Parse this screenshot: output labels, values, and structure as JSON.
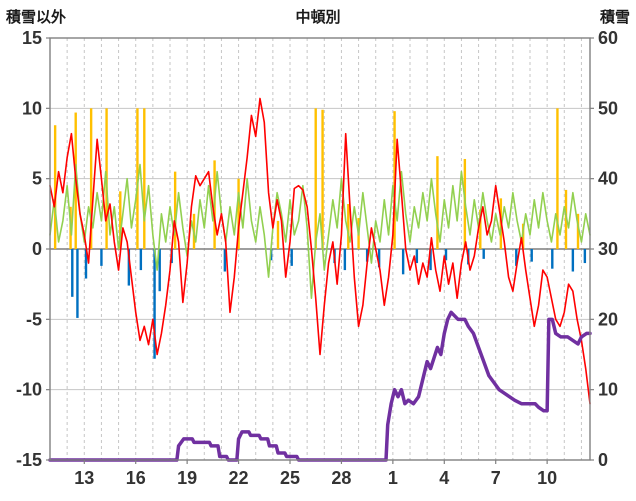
{
  "header": {
    "left_title": "積雪以外",
    "center_title": "中頓別",
    "right_title": "積雪"
  },
  "chart_data": {
    "type": "line",
    "title": "中頓別",
    "left_axis_title": "積雪以外",
    "right_axis_title": "積雪",
    "x_domain": [
      11,
      42.5
    ],
    "x_tick_pos": [
      13,
      16,
      19,
      22,
      25,
      28,
      31,
      34,
      37,
      40
    ],
    "x_tick_labels": [
      "13",
      "16",
      "19",
      "22",
      "25",
      "28",
      "1",
      "4",
      "7",
      "10"
    ],
    "left_ylim": [
      -15,
      15
    ],
    "left_tick_pos": [
      15,
      10,
      5,
      0,
      -5,
      -10,
      -15
    ],
    "left_tick_labels": [
      "15",
      "10",
      "5",
      "0",
      "-5",
      "-10",
      "-15"
    ],
    "right_ylim": [
      0,
      60
    ],
    "right_tick_pos": [
      60,
      50,
      40,
      30,
      20,
      10,
      0
    ],
    "right_tick_labels": [
      "60",
      "50",
      "40",
      "30",
      "20",
      "10",
      "0"
    ],
    "grid": true,
    "legend": "none",
    "colors": {
      "frame": "#808080",
      "gridline": "#c6c6c6",
      "zero_line": "#7f7f7f",
      "tick_text": "#333333",
      "red_line": "#ff0000",
      "green_line": "#92d050",
      "orange_bars": "#ffc000",
      "blue_bars": "#0070c0",
      "purple_line": "#7030a0"
    },
    "series": [
      {
        "name": "orange-bars",
        "kind": "bar",
        "axis": "left",
        "color": "#ffc000",
        "points": [
          [
            11.3,
            8.8
          ],
          [
            12.2,
            3.0
          ],
          [
            12.5,
            9.7
          ],
          [
            13.4,
            10
          ],
          [
            14.3,
            10
          ],
          [
            15.1,
            4.1
          ],
          [
            16.1,
            10
          ],
          [
            16.5,
            10
          ],
          [
            18.3,
            5.5
          ],
          [
            19.4,
            2.5
          ],
          [
            20.6,
            6.3
          ],
          [
            22.0,
            5.0
          ],
          [
            24.3,
            2.0
          ],
          [
            26.5,
            10
          ],
          [
            26.9,
            9.9
          ],
          [
            28.4,
            3.2
          ],
          [
            29.0,
            2.2
          ],
          [
            31.1,
            9.8
          ],
          [
            33.6,
            6.6
          ],
          [
            35.2,
            6.4
          ],
          [
            36.1,
            2.8
          ],
          [
            37.3,
            3.6
          ],
          [
            38.6,
            1.8
          ],
          [
            40.6,
            10
          ],
          [
            41.1,
            4.2
          ],
          [
            41.8,
            2.5
          ]
        ]
      },
      {
        "name": "blue-bars",
        "kind": "bar",
        "axis": "left",
        "color": "#0070c0",
        "points": [
          [
            12.3,
            -3.4
          ],
          [
            12.6,
            -4.9
          ],
          [
            13.1,
            -2.1
          ],
          [
            14.0,
            -1.2
          ],
          [
            15.6,
            -2.6
          ],
          [
            16.3,
            -1.5
          ],
          [
            17.1,
            -7.8
          ],
          [
            17.4,
            -3.0
          ],
          [
            18.1,
            -1.0
          ],
          [
            21.2,
            -1.6
          ],
          [
            23.9,
            -0.8
          ],
          [
            25.1,
            -1.2
          ],
          [
            27.6,
            -1.0
          ],
          [
            28.2,
            -1.5
          ],
          [
            29.5,
            -0.9
          ],
          [
            30.2,
            -1.3
          ],
          [
            31.6,
            -1.8
          ],
          [
            32.4,
            -1.0
          ],
          [
            33.2,
            -1.5
          ],
          [
            34.1,
            -0.8
          ],
          [
            35.4,
            -1.1
          ],
          [
            36.3,
            -0.7
          ],
          [
            38.2,
            -1.2
          ],
          [
            39.1,
            -0.9
          ],
          [
            40.3,
            -1.4
          ],
          [
            41.5,
            -1.6
          ],
          [
            42.2,
            -1.0
          ]
        ]
      },
      {
        "name": "green-line",
        "kind": "line",
        "axis": "left",
        "color": "#92d050",
        "width": 1.6,
        "x_start": 11,
        "x_step": 0.25,
        "y": [
          1,
          3.5,
          0.5,
          2,
          4.5,
          1,
          6,
          2.5,
          0.5,
          3,
          1.5,
          4,
          2,
          5.5,
          1,
          3,
          0,
          2.5,
          5,
          1.5,
          3.5,
          6,
          2,
          4.5,
          1,
          -1.5,
          2.5,
          0.5,
          3,
          1,
          4,
          1.5,
          -0.5,
          2,
          0.5,
          3.5,
          1.5,
          4.5,
          2,
          5.5,
          2.5,
          0.5,
          3,
          1,
          4,
          1.5,
          5,
          2,
          0.5,
          3,
          1,
          -2,
          1.5,
          4,
          2.5,
          0.5,
          3.5,
          1,
          2,
          4.5,
          1.5,
          -3.5,
          0.5,
          2.5,
          -1.5,
          1,
          3.5,
          1.5,
          5,
          2,
          0.5,
          3,
          1,
          4,
          1.5,
          -1,
          2,
          0.5,
          3.5,
          1,
          4.5,
          2,
          5.5,
          2.5,
          0.5,
          3,
          1.5,
          4,
          2,
          5,
          2.5,
          0.5,
          3.5,
          1.5,
          4.5,
          2,
          5.5,
          3,
          1,
          3.5,
          1.5,
          4,
          2,
          0.5,
          2.5,
          1,
          3,
          1.5,
          4,
          2,
          0.5,
          2.5,
          1,
          3.5,
          1.5,
          4,
          2,
          0.5,
          2.5,
          1,
          3,
          1.5,
          4,
          2,
          0.5,
          2.5,
          1
        ]
      },
      {
        "name": "red-line",
        "kind": "line",
        "axis": "left",
        "color": "#ff0000",
        "width": 1.6,
        "x_start": 11,
        "x_step": 0.25,
        "y": [
          4.5,
          3,
          5.5,
          4,
          6.5,
          8.2,
          5,
          2.5,
          1,
          -1,
          3.5,
          7.8,
          5,
          2,
          3.2,
          0.5,
          -1.5,
          1.5,
          0.5,
          -2,
          -4.5,
          -6.5,
          -5.5,
          -6.8,
          -5,
          -7.5,
          -6,
          -4,
          -1.5,
          2,
          0.5,
          -3.8,
          -1,
          3,
          5.2,
          4.5,
          5,
          5.5,
          3,
          1,
          2.5,
          0.5,
          -4.5,
          -2,
          1.5,
          4,
          6.5,
          9.5,
          8,
          10.7,
          9,
          4,
          1.5,
          3.5,
          2,
          -2,
          0.5,
          4.3,
          4.5,
          4.2,
          3,
          0,
          -3.5,
          -7.5,
          -4,
          -1,
          0.5,
          -2.5,
          1,
          8.2,
          3,
          -2,
          -5.5,
          -4,
          -1,
          1.5,
          0,
          -1.5,
          -4,
          -2,
          1,
          7.8,
          4,
          0,
          -1.5,
          -0.5,
          -2.5,
          -1,
          -2,
          0.8,
          -1.5,
          -3,
          -0.5,
          -2.5,
          -1,
          -3.5,
          -1,
          0.5,
          -1.5,
          -0.5,
          1.5,
          3,
          1,
          2,
          4.5,
          2.5,
          0.5,
          -2,
          -3,
          -1,
          0.8,
          -1.5,
          -3.5,
          -5.5,
          -4,
          -1.5,
          -2,
          -3.5,
          -5,
          -5.5,
          -4.5,
          -2.5,
          -3,
          -5,
          -6.5,
          -8.5,
          -11
        ]
      },
      {
        "name": "purple-snow-depth-line",
        "kind": "line",
        "axis": "right",
        "color": "#7030a0",
        "width": 3.5,
        "points": [
          [
            11,
            0
          ],
          [
            18.4,
            0
          ],
          [
            18.5,
            2
          ],
          [
            18.8,
            3
          ],
          [
            19.3,
            3
          ],
          [
            19.4,
            2.5
          ],
          [
            20.3,
            2.5
          ],
          [
            20.4,
            2
          ],
          [
            20.8,
            2
          ],
          [
            20.9,
            0.5
          ],
          [
            21.3,
            0.5
          ],
          [
            21.4,
            0
          ],
          [
            21.9,
            0
          ],
          [
            22,
            3
          ],
          [
            22.2,
            4
          ],
          [
            22.6,
            4
          ],
          [
            22.7,
            3.5
          ],
          [
            23.2,
            3.5
          ],
          [
            23.3,
            3
          ],
          [
            23.7,
            3
          ],
          [
            23.8,
            2
          ],
          [
            24.2,
            2
          ],
          [
            24.3,
            1
          ],
          [
            24.7,
            1
          ],
          [
            24.8,
            0.5
          ],
          [
            25.4,
            0.5
          ],
          [
            25.5,
            0
          ],
          [
            30.6,
            0
          ],
          [
            30.7,
            5
          ],
          [
            30.9,
            8
          ],
          [
            31.1,
            10
          ],
          [
            31.3,
            9
          ],
          [
            31.5,
            10
          ],
          [
            31.7,
            8
          ],
          [
            31.9,
            8.5
          ],
          [
            32.2,
            8
          ],
          [
            32.5,
            9
          ],
          [
            32.8,
            12
          ],
          [
            33,
            14
          ],
          [
            33.2,
            13
          ],
          [
            33.4,
            14.5
          ],
          [
            33.6,
            16
          ],
          [
            33.8,
            15
          ],
          [
            34,
            18
          ],
          [
            34.2,
            20
          ],
          [
            34.4,
            21
          ],
          [
            34.6,
            20.5
          ],
          [
            34.8,
            20
          ],
          [
            35.2,
            20
          ],
          [
            35.4,
            19
          ],
          [
            35.7,
            18
          ],
          [
            36,
            16
          ],
          [
            36.3,
            14
          ],
          [
            36.6,
            12
          ],
          [
            36.9,
            11
          ],
          [
            37.2,
            10
          ],
          [
            37.5,
            9.5
          ],
          [
            37.8,
            9
          ],
          [
            38.1,
            8.5
          ],
          [
            38.5,
            8
          ],
          [
            39.3,
            8
          ],
          [
            39.5,
            7.5
          ],
          [
            39.8,
            7
          ],
          [
            40,
            7
          ],
          [
            40.1,
            20
          ],
          [
            40.3,
            20
          ],
          [
            40.5,
            18
          ],
          [
            40.8,
            17.5
          ],
          [
            41.2,
            17.5
          ],
          [
            41.5,
            17
          ],
          [
            41.8,
            16.5
          ],
          [
            42,
            17.5
          ],
          [
            42.3,
            18
          ],
          [
            42.5,
            18
          ]
        ]
      }
    ]
  }
}
